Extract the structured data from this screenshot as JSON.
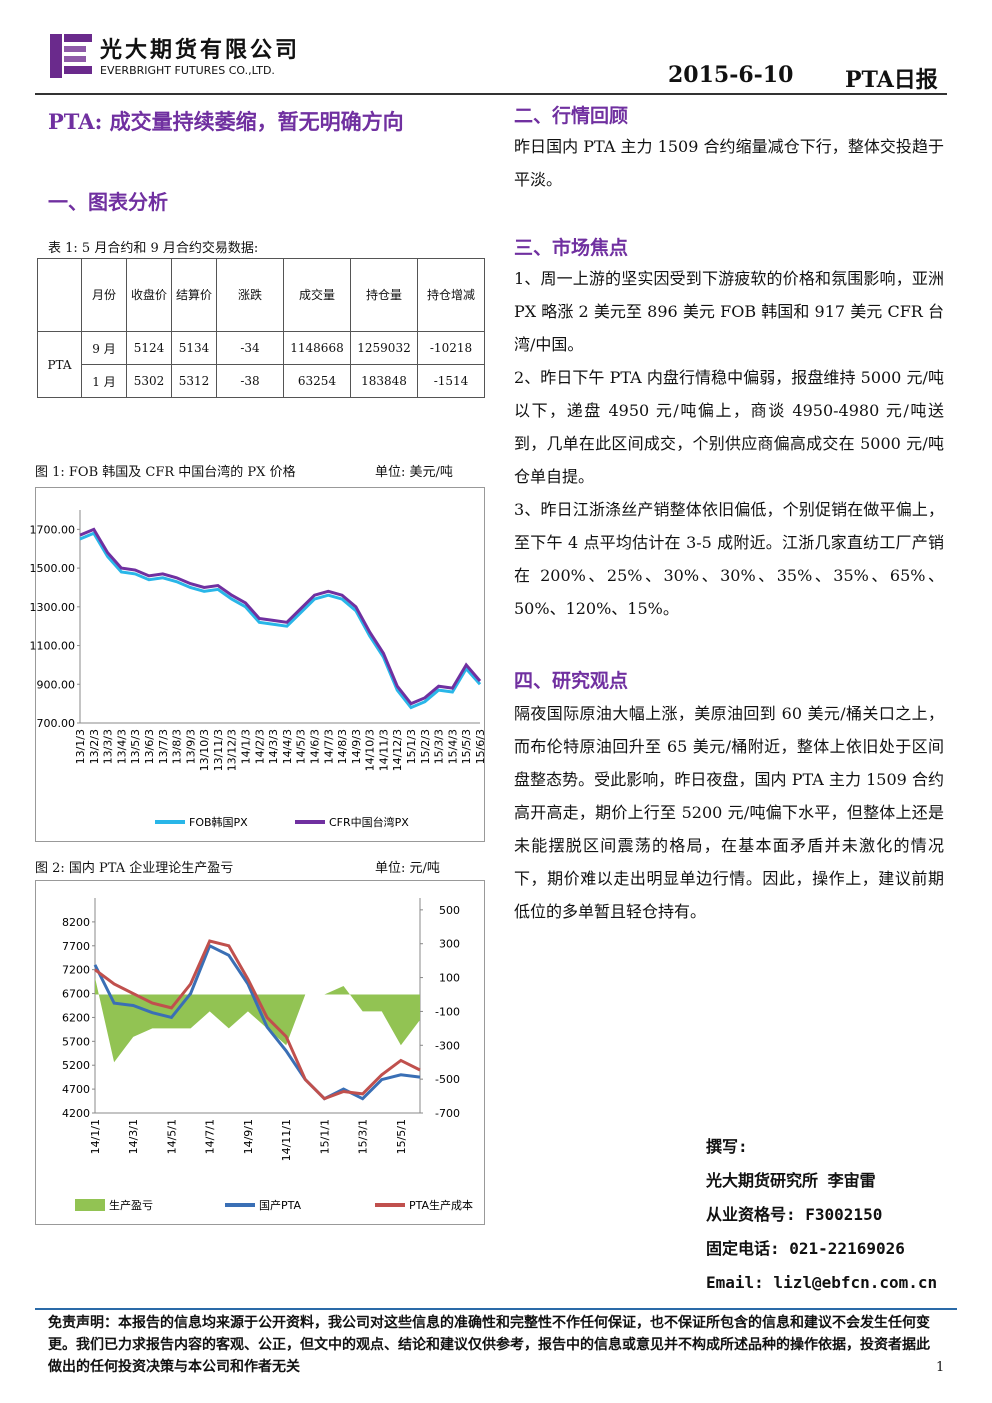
{
  "header": {
    "company_cn": "光大期货有限公司",
    "company_en": "EVERBRIGHT FUTURES CO.,LTD.",
    "date": "2015-6-10",
    "report": "PTA日报"
  },
  "title": "PTA: 成交量持续萎缩，暂无明确方向",
  "section1": "一、图表分析",
  "table": {
    "caption": "表 1: 5 月合约和 9 月合约交易数据:",
    "headers": [
      "月份",
      "收盘价",
      "结算价",
      "涨跌",
      "成交量",
      "持仓量",
      "持仓增减"
    ],
    "product": "PTA",
    "rows": [
      [
        "9 月",
        "5124",
        "5134",
        "-34",
        "1148668",
        "1259032",
        "-10218"
      ],
      [
        "1 月",
        "5302",
        "5312",
        "-38",
        "63254",
        "183848",
        "-1514"
      ]
    ]
  },
  "chart_data": [
    {
      "type": "line",
      "title": "图 1: FOB 韩国及 CFR 中国台湾的 PX 价格",
      "unit_label": "单位: 美元/吨",
      "categories": [
        "13/1/3",
        "13/2/3",
        "13/3/3",
        "13/4/3",
        "13/5/3",
        "13/6/3",
        "13/7/3",
        "13/8/3",
        "13/9/3",
        "13/10/3",
        "13/11/3",
        "13/12/3",
        "14/1/3",
        "14/2/3",
        "14/3/3",
        "14/4/3",
        "14/5/3",
        "14/6/3",
        "14/7/3",
        "14/8/3",
        "14/9/3",
        "14/10/3",
        "14/11/3",
        "14/12/3",
        "15/1/3",
        "15/2/3",
        "15/3/3",
        "15/4/3",
        "15/5/3",
        "15/6/3"
      ],
      "ylim": [
        700,
        1800
      ],
      "yticks": [
        {
          "value": 700,
          "label": "700.00"
        },
        {
          "value": 900,
          "label": "900.00"
        },
        {
          "value": 1100,
          "label": "1100.00"
        },
        {
          "value": 1300,
          "label": "1300.00"
        },
        {
          "value": 1500,
          "label": "1500.00"
        },
        {
          "value": 1700,
          "label": "1700.00"
        }
      ],
      "series": [
        {
          "name": "FOB韩国PX",
          "color": "#29b6e8",
          "values": [
            1650,
            1680,
            1560,
            1480,
            1470,
            1440,
            1450,
            1430,
            1400,
            1380,
            1390,
            1340,
            1300,
            1220,
            1210,
            1200,
            1270,
            1340,
            1360,
            1340,
            1280,
            1150,
            1040,
            870,
            780,
            810,
            870,
            860,
            980,
            900
          ]
        },
        {
          "name": "CFR中国台湾PX",
          "color": "#7030a0",
          "values": [
            1670,
            1700,
            1580,
            1500,
            1490,
            1460,
            1470,
            1450,
            1420,
            1400,
            1410,
            1360,
            1320,
            1240,
            1230,
            1220,
            1290,
            1360,
            1380,
            1360,
            1300,
            1170,
            1060,
            890,
            800,
            830,
            890,
            880,
            1000,
            917
          ]
        }
      ]
    },
    {
      "type": "line",
      "title": "图 2: 国内 PTA 企业理论生产盈亏",
      "unit_label": "单位: 元/吨",
      "categories": [
        "14/1/1",
        null,
        "14/3/1",
        null,
        "14/5/1",
        null,
        "14/7/1",
        null,
        "14/9/1",
        null,
        "14/11/1",
        null,
        "15/1/1",
        null,
        "15/3/1",
        null,
        "15/5/1",
        null
      ],
      "ylim": [
        4200,
        8700
      ],
      "yticks": [
        4200,
        4700,
        5200,
        5700,
        6200,
        6700,
        7200,
        7700,
        8200
      ],
      "y2lim": [
        -700,
        570
      ],
      "y2ticks": [
        -700,
        -500,
        -300,
        -100,
        100,
        300,
        500
      ],
      "series": [
        {
          "name": "生产盈亏",
          "color": "#92c353",
          "axis": "y2",
          "style": "area",
          "values": [
            100,
            -400,
            -250,
            -200,
            -200,
            -200,
            -100,
            -200,
            -100,
            -200,
            -300,
            0,
            0,
            50,
            -100,
            -100,
            -300,
            -150
          ]
        },
        {
          "name": "国产PTA",
          "color": "#3a6fb5",
          "values": [
            7300,
            6500,
            6450,
            6300,
            6200,
            6700,
            7700,
            7500,
            6900,
            6000,
            5500,
            4900,
            4500,
            4700,
            4500,
            4900,
            5000,
            4950
          ]
        },
        {
          "name": "PTA生产成本",
          "color": "#c0504d",
          "values": [
            7200,
            6900,
            6700,
            6500,
            6400,
            6900,
            7800,
            7700,
            7000,
            6200,
            5800,
            4900,
            4500,
            4650,
            4600,
            5000,
            5300,
            5100
          ]
        }
      ]
    }
  ],
  "right": {
    "s2": "二、行情回顾",
    "p2": "昨日国内 PTA 主力 1509 合约缩量减仓下行，整体交投趋于平淡。",
    "s3": "三、市场焦点",
    "p3": [
      "1、周一上游的坚实因受到下游疲软的价格和氛围影响，亚洲 PX 略涨 2 美元至 896 美元 FOB 韩国和 917 美元 CFR 台湾/中国。",
      "2、昨日下午 PTA 内盘行情稳中偏弱，报盘维持 5000 元/吨以下，递盘 4950 元/吨偏上，商谈 4950-4980 元/吨送到，几单在此区间成交，个别供应商偏高成交在 5000 元/吨仓单自提。",
      "3、昨日江浙涤丝产销整体依旧偏低，个别促销在做平偏上，至下午 4 点平均估计在 3-5 成附近。江浙几家直纺工厂产销在 200%、25%、30%、30%、35%、35%、65%、50%、120%、15%。"
    ],
    "s4": "四、研究观点",
    "p4": "隔夜国际原油大幅上涨，美原油回到 60 美元/桶关口之上，而布伦特原油回升至 65 美元/桶附近，整体上依旧处于区间盘整态势。受此影响，昨日夜盘，国内 PTA 主力 1509 合约高开高走，期价上行至 5200 元/吨偏下水平，但整体上还是未能摆脱区间震荡的格局，在基本面矛盾并未激化的情况下，期价难以走出明显单边行情。因此，操作上，建议前期低位的多单暂且轻仓持有。"
  },
  "author": [
    "撰写:",
    "光大期货研究所 李宙雷",
    "从业资格号: F3002150",
    "固定电话: 021-22169026",
    "Email: lizl@ebfcn.com.cn"
  ],
  "footer": {
    "disclaimer": "免责声明：本报告的信息均来源于公开资料，我公司对这些信息的准确性和完整性不作任何保证，也不保证所包含的信息和建议不会发生任何变更。我们已力求报告内容的客观、公正，但文中的观点、结论和建议仅供参考，报告中的信息或意见并不构成所述品种的操作依据，投资者据此做出的任何投资决策与本公司和作者无关",
    "page": "1"
  }
}
